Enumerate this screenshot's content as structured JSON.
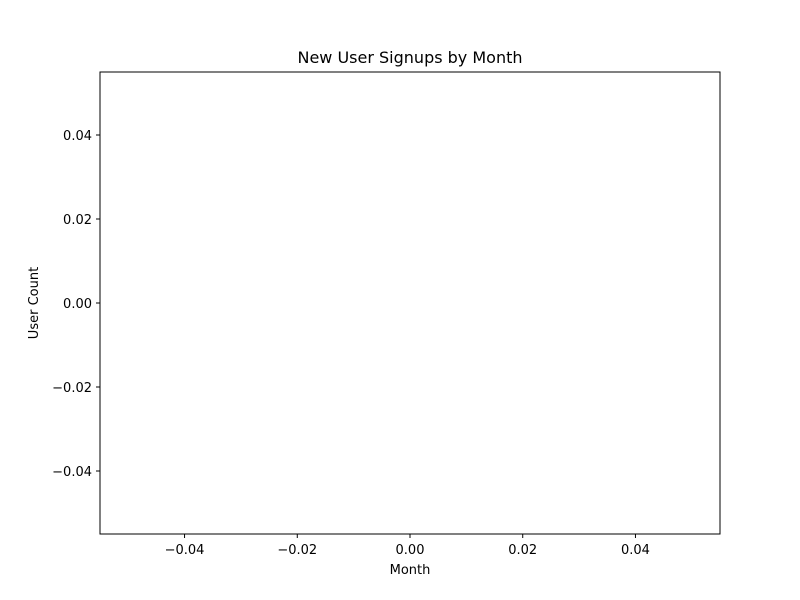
{
  "chart_data": {
    "type": "line",
    "title": "New User Signups by Month",
    "xlabel": "Month",
    "ylabel": "User Count",
    "xlim": [
      -0.055,
      0.055
    ],
    "ylim": [
      -0.055,
      0.055
    ],
    "xticks": [
      -0.04,
      -0.02,
      0.0,
      0.02,
      0.04
    ],
    "xtick_labels": [
      "−0.04",
      "−0.02",
      "0.00",
      "0.02",
      "0.04"
    ],
    "yticks": [
      -0.04,
      -0.02,
      0.0,
      0.02,
      0.04
    ],
    "ytick_labels": [
      "−0.04",
      "−0.02",
      "0.00",
      "0.02",
      "0.04"
    ],
    "grid": false,
    "series": [],
    "colors": {
      "frame": "#000000",
      "background": "#ffffff",
      "text": "#000000"
    }
  }
}
